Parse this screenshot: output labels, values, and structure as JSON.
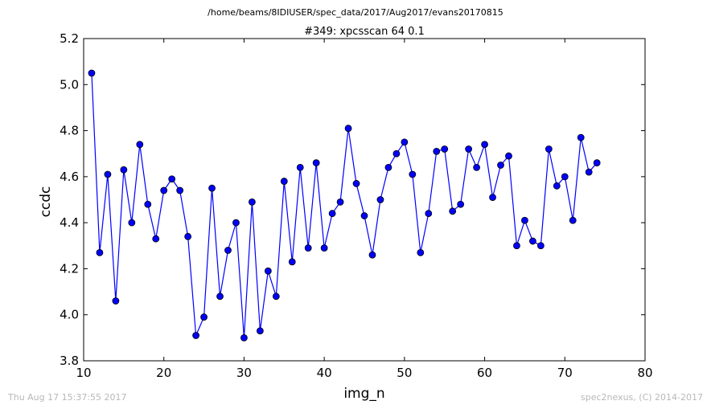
{
  "suptitle": "/home/beams/8IDIUSER/spec_data/2017/Aug2017/evans20170815",
  "footer_left": "Thu Aug 17 15:37:55 2017",
  "footer_right": "spec2nexus, (C) 2014-2017",
  "chart_data": {
    "type": "line",
    "title": "#349: xpcsscan 64 0.1",
    "xlabel": "img_n",
    "ylabel": "ccdc",
    "xlim": [
      10,
      80
    ],
    "ylim": [
      3.8,
      5.2
    ],
    "xticks": [
      "10",
      "20",
      "30",
      "40",
      "50",
      "60",
      "70",
      "80"
    ],
    "yticks": [
      "3.8",
      "4.0",
      "4.2",
      "4.4",
      "4.6",
      "4.8",
      "5.0",
      "5.2"
    ],
    "grid": false,
    "color": "#0000ff",
    "marker": "circle",
    "x": [
      11,
      12,
      13,
      14,
      15,
      16,
      17,
      18,
      19,
      20,
      21,
      22,
      23,
      24,
      25,
      26,
      27,
      28,
      29,
      30,
      31,
      32,
      33,
      34,
      35,
      36,
      37,
      38,
      39,
      40,
      41,
      42,
      43,
      44,
      45,
      46,
      47,
      48,
      49,
      50,
      51,
      52,
      53,
      54,
      55,
      56,
      57,
      58,
      59,
      60,
      61,
      62,
      63,
      64,
      65,
      66,
      67,
      68,
      69,
      70,
      71,
      72,
      73,
      74
    ],
    "y": [
      5.05,
      4.27,
      4.61,
      4.06,
      4.63,
      4.4,
      4.74,
      4.48,
      4.33,
      4.54,
      4.59,
      4.54,
      4.34,
      3.91,
      3.99,
      4.55,
      4.08,
      4.28,
      4.4,
      3.9,
      4.49,
      3.93,
      4.19,
      4.08,
      4.58,
      4.23,
      4.64,
      4.29,
      4.66,
      4.29,
      4.44,
      4.49,
      4.81,
      4.57,
      4.43,
      4.26,
      4.5,
      4.64,
      4.7,
      4.75,
      4.61,
      4.27,
      4.44,
      4.71,
      4.72,
      4.45,
      4.48,
      4.72,
      4.64,
      4.74,
      4.51,
      4.65,
      4.69,
      4.3,
      4.41,
      4.32,
      4.3,
      4.72,
      4.56,
      4.6,
      4.41,
      4.77,
      4.62,
      4.66
    ]
  }
}
